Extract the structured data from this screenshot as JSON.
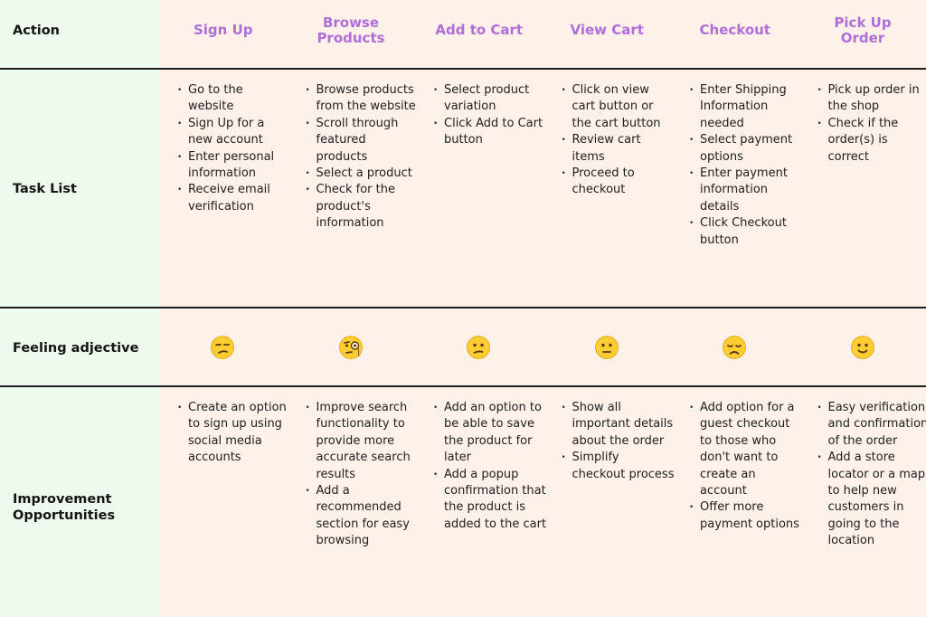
{
  "rows": {
    "action": "Action",
    "tasks": "Task List",
    "feeling": "Feeling adjective",
    "improvements": "Improvement Opportunities"
  },
  "stages": [
    {
      "title": "Sign Up",
      "tasks": [
        "Go to the website",
        "Sign Up for a new account",
        "Enter personal information",
        "Receive email verification"
      ],
      "feeling": "unamused-face-icon",
      "improvements": [
        "Create an option to sign up using social media accounts"
      ]
    },
    {
      "title": "Browse Products",
      "tasks": [
        "Browse products from the website",
        "Scroll through featured products",
        "Select a product",
        "Check for the product's information"
      ],
      "feeling": "monocle-face-icon",
      "improvements": [
        "Improve search functionality to provide more accurate search results",
        "Add a recommended section for easy browsing"
      ]
    },
    {
      "title": "Add to Cart",
      "tasks": [
        "Select product variation",
        "Click Add to Cart button"
      ],
      "feeling": "confused-face-icon",
      "improvements": [
        "Add an option to be able to save the product for later",
        "Add a popup confirmation that the product is added to the cart"
      ]
    },
    {
      "title": "View Cart",
      "tasks": [
        "Click on view cart button or the cart button",
        "Review cart items",
        "Proceed to checkout"
      ],
      "feeling": "neutral-face-icon",
      "improvements": [
        "Show all important details about the order",
        "Simplify checkout process"
      ]
    },
    {
      "title": "Checkout",
      "tasks": [
        "Enter Shipping Information needed",
        "Select payment options",
        "Enter payment information details",
        "Click Checkout button"
      ],
      "feeling": "disappointed-face-icon",
      "improvements": [
        "Add option for a guest checkout to those who don't want to create an account",
        "Offer more payment options"
      ]
    },
    {
      "title": "Pick Up Order",
      "tasks": [
        "Pick up order in the shop",
        "Check if the order(s) is correct"
      ],
      "feeling": "slightly-smiling-face-icon",
      "improvements": [
        "Easy verification and confirmation of the order",
        "Add a store locator or a map to help new customers in going to the location"
      ]
    }
  ]
}
